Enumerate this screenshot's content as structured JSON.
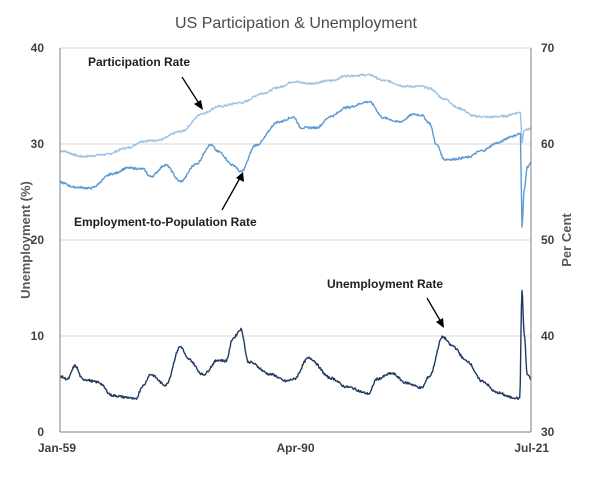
{
  "chart_data": {
    "type": "line",
    "title": "US Participation & Unemployment",
    "ylabel_left": "Unemployment (%)",
    "ylabel_right": "Per Cent",
    "ylim_left": [
      0,
      40
    ],
    "ylim_right": [
      30,
      70
    ],
    "yticks_left": [
      "0",
      "10",
      "20",
      "30",
      "40"
    ],
    "yticks_right": [
      "30",
      "40",
      "50",
      "60",
      "70"
    ],
    "x_range": [
      "Jan-59",
      "Jul-21"
    ],
    "xticks": [
      "Jan-59",
      "Apr-90",
      "Jul-21"
    ],
    "grid": "horizontal",
    "colors": {
      "participation": "#9dc3e6",
      "employment": "#5b9bd5",
      "unemployment": "#1f3a5f",
      "grid": "#d9d9d9",
      "axis": "#7f7f7f"
    },
    "annotations": {
      "participation": "Participation Rate",
      "employment": "Employment-to-Population Rate",
      "unemployment": "Unemployment Rate"
    },
    "series": [
      {
        "key": "participation",
        "axis": "right",
        "x": [
          1959,
          1962,
          1965,
          1968,
          1970,
          1972,
          1975,
          1978,
          1980,
          1983,
          1986,
          1988,
          1990,
          1992,
          1995,
          1997,
          2000,
          2002,
          2005,
          2007,
          2008,
          2010,
          2012,
          2014,
          2016,
          2018,
          2019.5,
          2020.1,
          2020.3,
          2020.6,
          2021,
          2021.5
        ],
        "y": [
          59.3,
          58.7,
          58.9,
          59.6,
          60.3,
          60.4,
          61.3,
          63.2,
          63.9,
          64.3,
          65.3,
          65.9,
          66.5,
          66.3,
          66.6,
          67.1,
          67.2,
          66.6,
          66.0,
          66.0,
          65.8,
          64.7,
          63.7,
          62.9,
          62.8,
          62.9,
          63.2,
          63.3,
          60.2,
          61.5,
          61.5,
          61.6
        ]
      },
      {
        "key": "employment",
        "axis": "right",
        "x": [
          1959,
          1961,
          1963,
          1966,
          1968,
          1970,
          1971,
          1973,
          1975,
          1977,
          1979,
          1980,
          1982,
          1983,
          1985,
          1988,
          1990,
          1991,
          1993,
          1995,
          1997,
          2000,
          2002,
          2004,
          2006,
          2007,
          2008,
          2009,
          2010,
          2011,
          2013,
          2015,
          2017,
          2019,
          2020.1,
          2020.3,
          2020.6,
          2021,
          2021.5
        ],
        "y": [
          56.0,
          55.5,
          55.4,
          56.9,
          57.5,
          57.4,
          56.6,
          57.8,
          56.1,
          57.9,
          59.9,
          59.2,
          57.8,
          57.1,
          59.9,
          62.3,
          62.8,
          61.7,
          61.7,
          62.9,
          63.8,
          64.4,
          62.7,
          62.3,
          63.1,
          63.0,
          62.2,
          59.9,
          58.4,
          58.4,
          58.6,
          59.3,
          60.1,
          60.8,
          61.1,
          51.3,
          55.2,
          57.6,
          58.0
        ]
      },
      {
        "key": "unemployment",
        "axis": "left",
        "x": [
          1959,
          1960,
          1961,
          1962,
          1964,
          1966,
          1968,
          1969,
          1970,
          1971,
          1973,
          1975,
          1976,
          1978,
          1980,
          1981,
          1982,
          1983,
          1984,
          1987,
          1989,
          1990,
          1992,
          1995,
          1997,
          2000,
          2001,
          2003,
          2005,
          2007,
          2008,
          2009.8,
          2011,
          2013,
          2015,
          2017,
          2019,
          2020.0,
          2020.3,
          2020.6,
          2021,
          2021.5
        ],
        "y": [
          5.8,
          5.5,
          6.9,
          5.5,
          5.2,
          3.8,
          3.6,
          3.4,
          4.8,
          6.0,
          4.9,
          8.9,
          7.6,
          6.0,
          7.5,
          7.4,
          9.8,
          10.7,
          7.3,
          6.0,
          5.3,
          5.5,
          7.7,
          5.6,
          4.7,
          4.0,
          5.5,
          6.1,
          5.1,
          4.6,
          5.8,
          9.9,
          9.0,
          7.4,
          5.3,
          4.1,
          3.6,
          3.5,
          14.7,
          10.2,
          6.0,
          5.5
        ]
      }
    ]
  }
}
